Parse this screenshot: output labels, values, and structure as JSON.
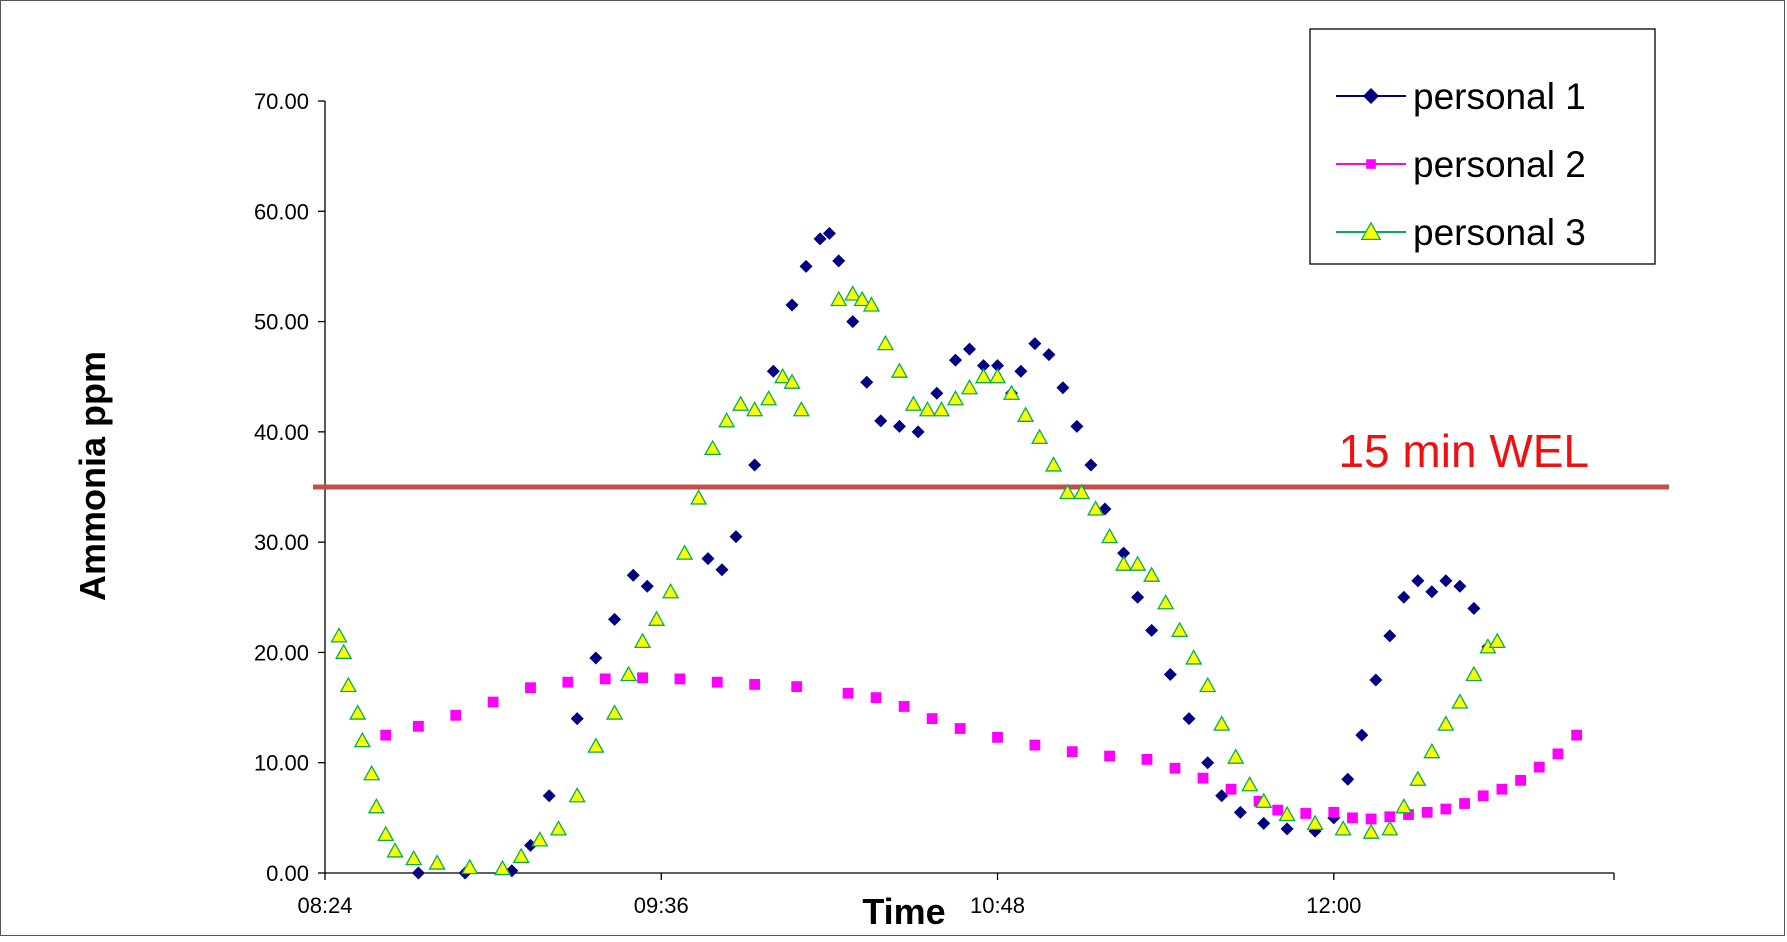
{
  "chart_data": {
    "type": "scatter",
    "xlabel": "Time",
    "ylabel": "Ammonia ppm",
    "x_range": [
      "08:24",
      "13:00"
    ],
    "x_ticks": [
      "08:24",
      "09:36",
      "10:48",
      "12:00"
    ],
    "ylim": [
      0,
      70
    ],
    "y_ticks": [
      "0.00",
      "10.00",
      "20.00",
      "30.00",
      "40.00",
      "50.00",
      "60.00",
      "70.00"
    ],
    "grid": false,
    "legend_position": "top-right",
    "reference_line": {
      "label": "15 min WEL",
      "value": 35,
      "color": "#c0504d"
    },
    "series": [
      {
        "name": "personal 1",
        "color": "#000080",
        "marker": "diamond",
        "points": [
          [
            "08:44",
            0.0
          ],
          [
            "08:54",
            0.0
          ],
          [
            "09:04",
            0.2
          ],
          [
            "09:08",
            2.5
          ],
          [
            "09:12",
            7.0
          ],
          [
            "09:18",
            14.0
          ],
          [
            "09:22",
            19.5
          ],
          [
            "09:26",
            23.0
          ],
          [
            "09:30",
            27.0
          ],
          [
            "09:33",
            26.0
          ],
          [
            "09:46",
            28.5
          ],
          [
            "09:49",
            27.5
          ],
          [
            "09:52",
            30.5
          ],
          [
            "09:56",
            37.0
          ],
          [
            "10:00",
            45.5
          ],
          [
            "10:04",
            51.5
          ],
          [
            "10:07",
            55.0
          ],
          [
            "10:10",
            57.5
          ],
          [
            "10:12",
            58.0
          ],
          [
            "10:14",
            55.5
          ],
          [
            "10:17",
            50.0
          ],
          [
            "10:20",
            44.5
          ],
          [
            "10:23",
            41.0
          ],
          [
            "10:27",
            40.5
          ],
          [
            "10:31",
            40.0
          ],
          [
            "10:35",
            43.5
          ],
          [
            "10:39",
            46.5
          ],
          [
            "10:42",
            47.5
          ],
          [
            "10:45",
            46.0
          ],
          [
            "10:48",
            46.0
          ],
          [
            "10:51",
            43.5
          ],
          [
            "10:53",
            45.5
          ],
          [
            "10:56",
            48.0
          ],
          [
            "10:59",
            47.0
          ],
          [
            "11:02",
            44.0
          ],
          [
            "11:05",
            40.5
          ],
          [
            "11:08",
            37.0
          ],
          [
            "11:11",
            33.0
          ],
          [
            "11:15",
            29.0
          ],
          [
            "11:18",
            25.0
          ],
          [
            "11:21",
            22.0
          ],
          [
            "11:25",
            18.0
          ],
          [
            "11:29",
            14.0
          ],
          [
            "11:33",
            10.0
          ],
          [
            "11:36",
            7.0
          ],
          [
            "11:40",
            5.5
          ],
          [
            "11:45",
            4.5
          ],
          [
            "11:50",
            4.0
          ],
          [
            "11:56",
            3.8
          ],
          [
            "12:00",
            5.0
          ],
          [
            "12:03",
            8.5
          ],
          [
            "12:06",
            12.5
          ],
          [
            "12:09",
            17.5
          ],
          [
            "12:12",
            21.5
          ],
          [
            "12:15",
            25.0
          ],
          [
            "12:18",
            26.5
          ],
          [
            "12:21",
            25.5
          ],
          [
            "12:24",
            26.5
          ],
          [
            "12:27",
            26.0
          ],
          [
            "12:30",
            24.0
          ],
          [
            "12:33",
            20.5
          ]
        ]
      },
      {
        "name": "personal 2",
        "color": "#ff00ff",
        "marker": "square",
        "points": [
          [
            "08:37",
            12.5
          ],
          [
            "08:44",
            13.3
          ],
          [
            "08:52",
            14.3
          ],
          [
            "09:00",
            15.5
          ],
          [
            "09:08",
            16.8
          ],
          [
            "09:16",
            17.3
          ],
          [
            "09:24",
            17.6
          ],
          [
            "09:32",
            17.7
          ],
          [
            "09:40",
            17.6
          ],
          [
            "09:48",
            17.3
          ],
          [
            "09:56",
            17.1
          ],
          [
            "10:05",
            16.9
          ],
          [
            "10:16",
            16.3
          ],
          [
            "10:22",
            15.9
          ],
          [
            "10:28",
            15.1
          ],
          [
            "10:34",
            14.0
          ],
          [
            "10:40",
            13.1
          ],
          [
            "10:48",
            12.3
          ],
          [
            "10:56",
            11.6
          ],
          [
            "11:04",
            11.0
          ],
          [
            "11:12",
            10.6
          ],
          [
            "11:20",
            10.3
          ],
          [
            "11:26",
            9.5
          ],
          [
            "11:32",
            8.6
          ],
          [
            "11:38",
            7.6
          ],
          [
            "11:44",
            6.5
          ],
          [
            "11:48",
            5.7
          ],
          [
            "11:54",
            5.4
          ],
          [
            "12:00",
            5.5
          ],
          [
            "12:04",
            5.0
          ],
          [
            "12:08",
            4.9
          ],
          [
            "12:12",
            5.1
          ],
          [
            "12:16",
            5.3
          ],
          [
            "12:20",
            5.5
          ],
          [
            "12:24",
            5.8
          ],
          [
            "12:28",
            6.3
          ],
          [
            "12:32",
            7.0
          ],
          [
            "12:36",
            7.6
          ],
          [
            "12:40",
            8.4
          ],
          [
            "12:44",
            9.6
          ],
          [
            "12:48",
            10.8
          ],
          [
            "12:52",
            12.5
          ]
        ]
      },
      {
        "name": "personal 3",
        "color": "#00b050",
        "fill": "#ffff00",
        "marker": "triangle",
        "points": [
          [
            "08:27",
            21.5
          ],
          [
            "08:28",
            20.0
          ],
          [
            "08:29",
            17.0
          ],
          [
            "08:31",
            14.5
          ],
          [
            "08:32",
            12.0
          ],
          [
            "08:34",
            9.0
          ],
          [
            "08:35",
            6.0
          ],
          [
            "08:37",
            3.5
          ],
          [
            "08:39",
            2.0
          ],
          [
            "08:43",
            1.3
          ],
          [
            "08:48",
            0.9
          ],
          [
            "08:55",
            0.5
          ],
          [
            "09:02",
            0.4
          ],
          [
            "09:06",
            1.5
          ],
          [
            "09:10",
            3.0
          ],
          [
            "09:14",
            4.0
          ],
          [
            "09:18",
            7.0
          ],
          [
            "09:22",
            11.5
          ],
          [
            "09:26",
            14.5
          ],
          [
            "09:29",
            18.0
          ],
          [
            "09:32",
            21.0
          ],
          [
            "09:35",
            23.0
          ],
          [
            "09:38",
            25.5
          ],
          [
            "09:41",
            29.0
          ],
          [
            "09:44",
            34.0
          ],
          [
            "09:47",
            38.5
          ],
          [
            "09:50",
            41.0
          ],
          [
            "09:53",
            42.5
          ],
          [
            "09:56",
            42.0
          ],
          [
            "09:59",
            43.0
          ],
          [
            "10:02",
            45.0
          ],
          [
            "10:04",
            44.5
          ],
          [
            "10:06",
            42.0
          ],
          [
            "10:14",
            52.0
          ],
          [
            "10:17",
            52.5
          ],
          [
            "10:19",
            52.0
          ],
          [
            "10:21",
            51.5
          ],
          [
            "10:24",
            48.0
          ],
          [
            "10:27",
            45.5
          ],
          [
            "10:30",
            42.5
          ],
          [
            "10:33",
            42.0
          ],
          [
            "10:36",
            42.0
          ],
          [
            "10:39",
            43.0
          ],
          [
            "10:42",
            44.0
          ],
          [
            "10:45",
            45.0
          ],
          [
            "10:48",
            45.0
          ],
          [
            "10:51",
            43.5
          ],
          [
            "10:54",
            41.5
          ],
          [
            "10:57",
            39.5
          ],
          [
            "11:00",
            37.0
          ],
          [
            "11:03",
            34.5
          ],
          [
            "11:06",
            34.5
          ],
          [
            "11:09",
            33.0
          ],
          [
            "11:12",
            30.5
          ],
          [
            "11:15",
            28.0
          ],
          [
            "11:18",
            28.0
          ],
          [
            "11:21",
            27.0
          ],
          [
            "11:24",
            24.5
          ],
          [
            "11:27",
            22.0
          ],
          [
            "11:30",
            19.5
          ],
          [
            "11:33",
            17.0
          ],
          [
            "11:36",
            13.5
          ],
          [
            "11:39",
            10.5
          ],
          [
            "11:42",
            8.0
          ],
          [
            "11:45",
            6.5
          ],
          [
            "11:50",
            5.3
          ],
          [
            "11:56",
            4.5
          ],
          [
            "12:02",
            4.0
          ],
          [
            "12:08",
            3.7
          ],
          [
            "12:12",
            4.0
          ],
          [
            "12:15",
            6.0
          ],
          [
            "12:18",
            8.5
          ],
          [
            "12:21",
            11.0
          ],
          [
            "12:24",
            13.5
          ],
          [
            "12:27",
            15.5
          ],
          [
            "12:30",
            18.0
          ],
          [
            "12:33",
            20.5
          ],
          [
            "12:35",
            21.0
          ]
        ]
      }
    ]
  }
}
